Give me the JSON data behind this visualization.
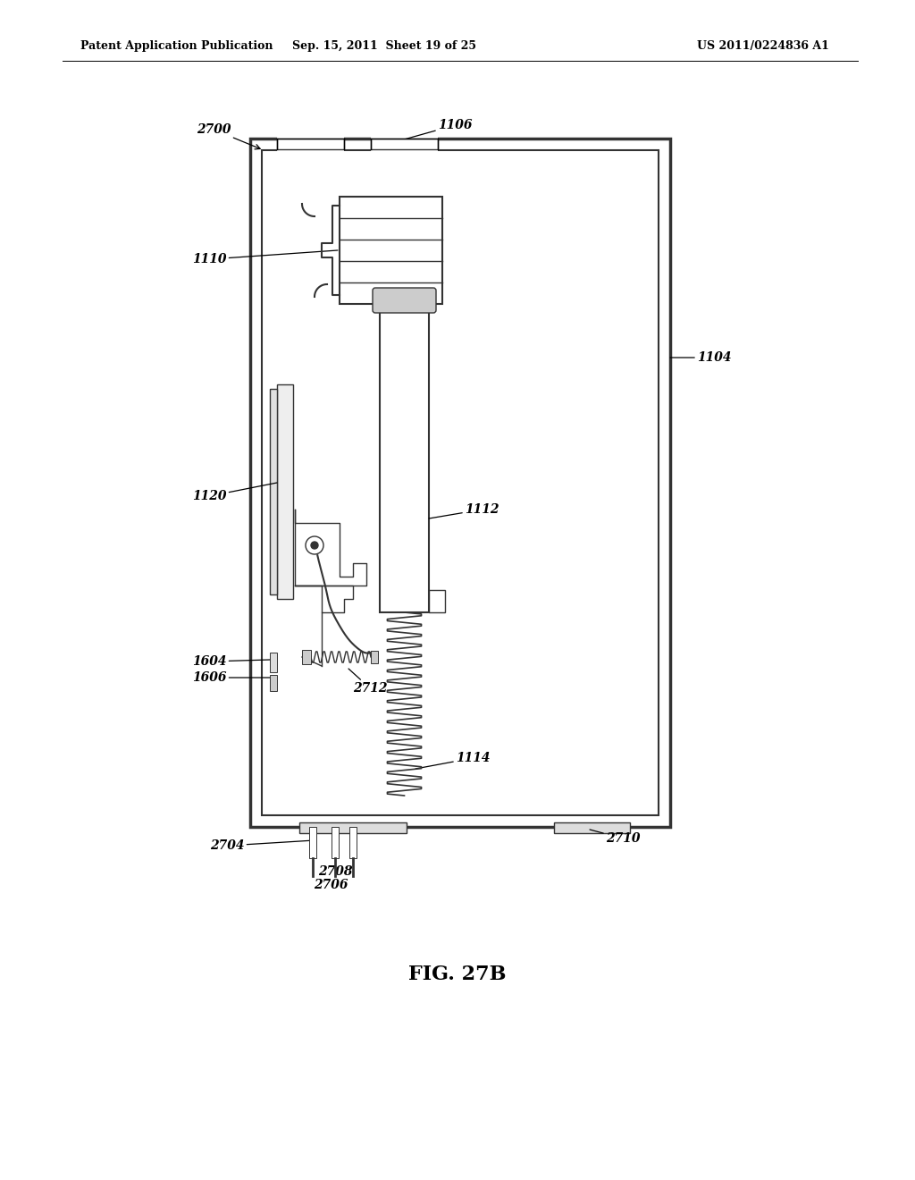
{
  "bg_color": "#ffffff",
  "header_left": "Patent Application Publication",
  "header_mid": "Sep. 15, 2011  Sheet 19 of 25",
  "header_right": "US 2011/0224836 A1",
  "figure_label": "FIG. 27B"
}
